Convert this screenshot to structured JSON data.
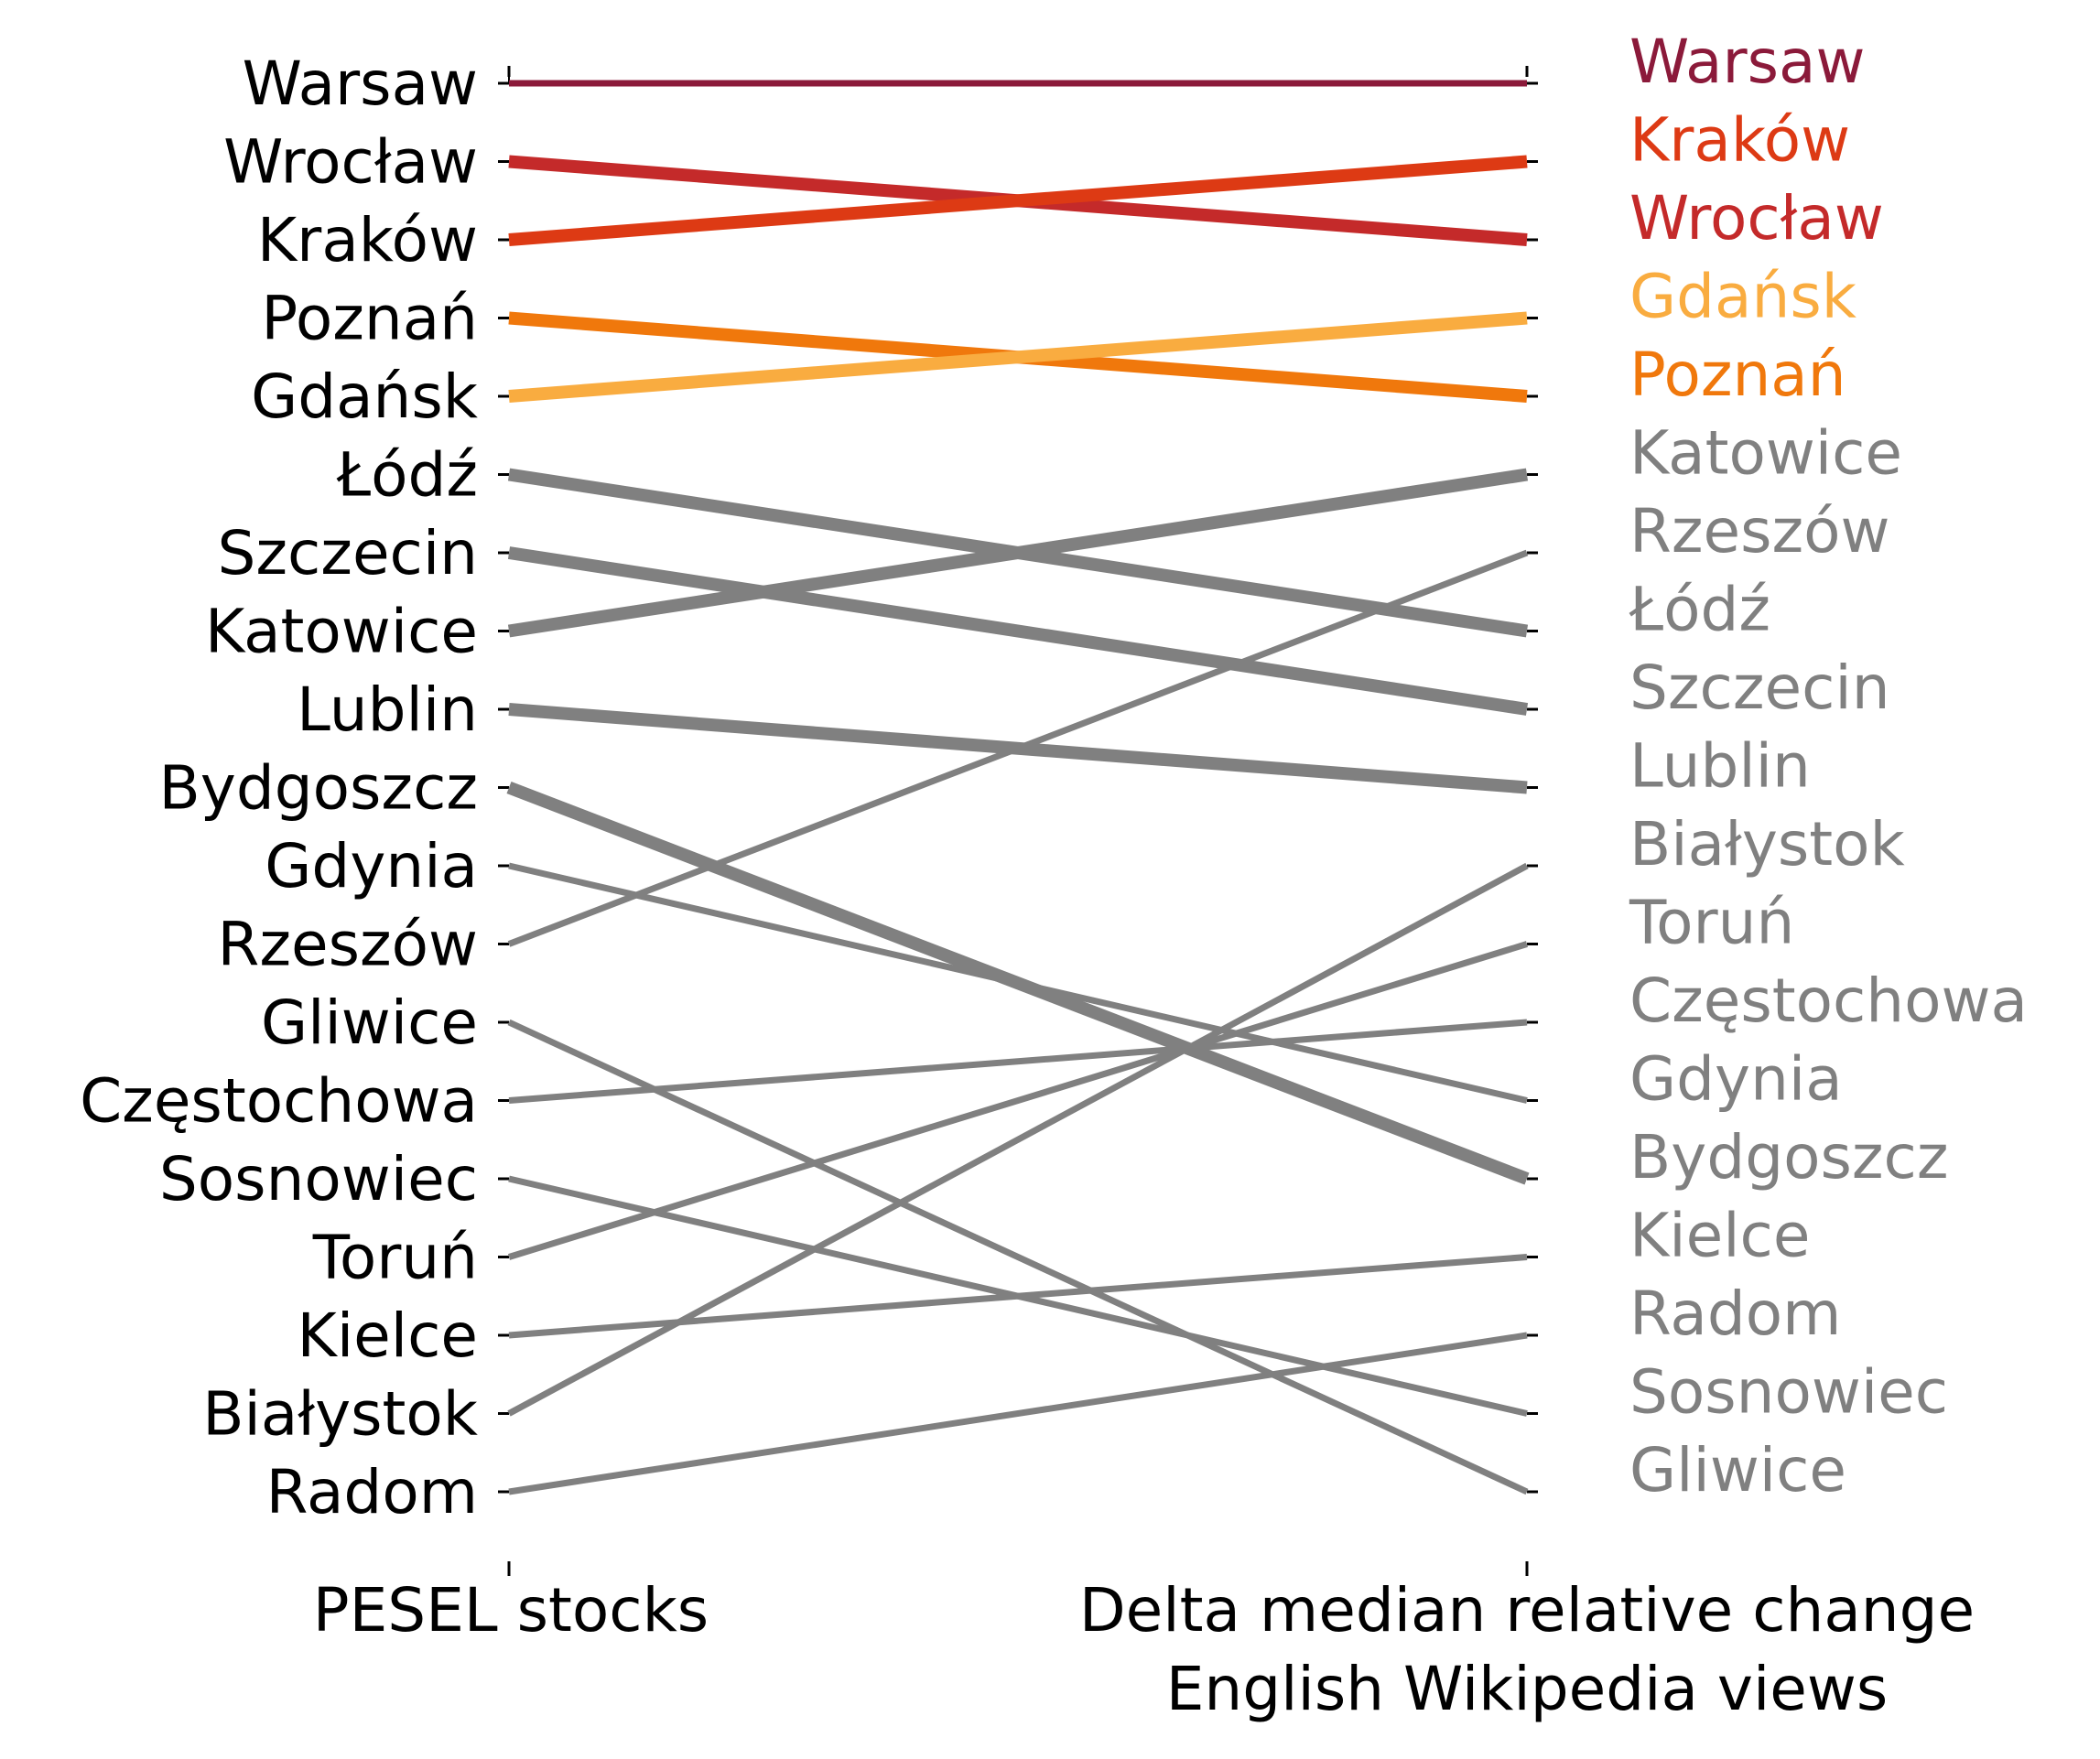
{
  "chart_data": {
    "type": "slope",
    "columns": [
      "PESEL stocks",
      "Delta median relative change",
      "English Wikipedia views"
    ],
    "x_axis_labels": {
      "left": "PESEL stocks",
      "right_line1": "Delta median relative change",
      "right_line2": "English Wikipedia views"
    },
    "colors": {
      "Warsaw": "#8b1a3a",
      "Kraków": "#dd3a14",
      "Wrocław": "#c42a2a",
      "Gdańsk": "#f9ac40",
      "Poznań": "#f0780c",
      "other": "#808080",
      "text": "#000000"
    },
    "left_ranking": [
      "Warsaw",
      "Wrocław",
      "Kraków",
      "Poznań",
      "Gdańsk",
      "Łódź",
      "Szczecin",
      "Katowice",
      "Lublin",
      "Bydgoszcz",
      "Gdynia",
      "Rzeszów",
      "Gliwice",
      "Częstochowa",
      "Sosnowiec",
      "Toruń",
      "Kielce",
      "Białystok",
      "Radom"
    ],
    "right_ranking": [
      "Warsaw",
      "Kraków",
      "Wrocław",
      "Gdańsk",
      "Poznań",
      "Katowice",
      "Rzeszów",
      "Łódź",
      "Szczecin",
      "Lublin",
      "Białystok",
      "Toruń",
      "Częstochowa",
      "Gdynia",
      "Bydgoszcz",
      "Kielce",
      "Radom",
      "Sosnowiec",
      "Gliwice"
    ],
    "series": [
      {
        "city": "Warsaw",
        "left_rank": 1,
        "right_rank": 1,
        "weight": 7
      },
      {
        "city": "Wrocław",
        "left_rank": 2,
        "right_rank": 3,
        "weight": 14
      },
      {
        "city": "Kraków",
        "left_rank": 3,
        "right_rank": 2,
        "weight": 14
      },
      {
        "city": "Poznań",
        "left_rank": 4,
        "right_rank": 5,
        "weight": 14
      },
      {
        "city": "Gdańsk",
        "left_rank": 5,
        "right_rank": 4,
        "weight": 14
      },
      {
        "city": "Łódź",
        "left_rank": 6,
        "right_rank": 8,
        "weight": 14
      },
      {
        "city": "Szczecin",
        "left_rank": 7,
        "right_rank": 9,
        "weight": 14
      },
      {
        "city": "Katowice",
        "left_rank": 8,
        "right_rank": 6,
        "weight": 14
      },
      {
        "city": "Lublin",
        "left_rank": 9,
        "right_rank": 10,
        "weight": 14
      },
      {
        "city": "Bydgoszcz",
        "left_rank": 10,
        "right_rank": 15,
        "weight": 14
      },
      {
        "city": "Gdynia",
        "left_rank": 11,
        "right_rank": 14,
        "weight": 7
      },
      {
        "city": "Rzeszów",
        "left_rank": 12,
        "right_rank": 7,
        "weight": 7
      },
      {
        "city": "Gliwice",
        "left_rank": 13,
        "right_rank": 19,
        "weight": 7
      },
      {
        "city": "Częstochowa",
        "left_rank": 14,
        "right_rank": 13,
        "weight": 7
      },
      {
        "city": "Sosnowiec",
        "left_rank": 15,
        "right_rank": 18,
        "weight": 7
      },
      {
        "city": "Toruń",
        "left_rank": 16,
        "right_rank": 12,
        "weight": 7
      },
      {
        "city": "Kielce",
        "left_rank": 17,
        "right_rank": 16,
        "weight": 7
      },
      {
        "city": "Białystok",
        "left_rank": 18,
        "right_rank": 11,
        "weight": 7
      },
      {
        "city": "Radom",
        "left_rank": 19,
        "right_rank": 17,
        "weight": 7
      }
    ]
  }
}
